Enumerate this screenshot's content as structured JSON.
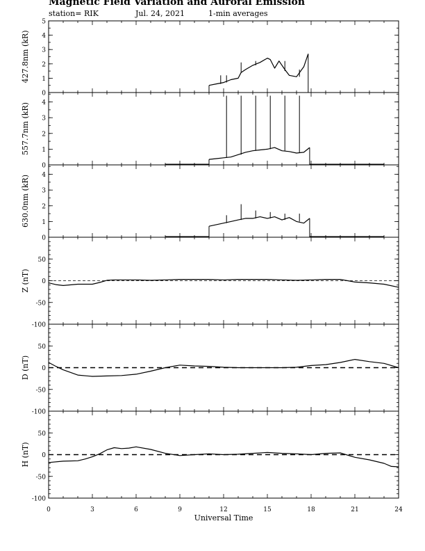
{
  "title": "Magnetic Field Variation and Auroral Emission",
  "subtitle": {
    "station": "station= RIK",
    "date": "Jul. 24, 2021",
    "averaging": "1-min averages"
  },
  "chart_data": [
    {
      "type": "line",
      "ylabel": "427.8nm (kR)",
      "ylim": [
        0,
        5
      ],
      "yticks": [
        0,
        1,
        2,
        3,
        4,
        5
      ],
      "dashed_zero": false,
      "x": [
        11.0,
        11.5,
        12.0,
        12.5,
        13.0,
        13.2,
        13.5,
        14.0,
        14.5,
        15.0,
        15.2,
        15.5,
        15.8,
        16.2,
        16.5,
        17.0,
        17.5,
        17.8
      ],
      "values": [
        0.5,
        0.6,
        0.7,
        0.9,
        1.0,
        1.4,
        1.6,
        1.9,
        2.1,
        2.4,
        2.3,
        1.7,
        2.2,
        1.6,
        1.2,
        1.1,
        1.8,
        2.7
      ],
      "spikes": [
        {
          "x": 11.8,
          "from": 0.6,
          "to": 1.2
        },
        {
          "x": 12.2,
          "from": 0.7,
          "to": 1.2
        },
        {
          "x": 13.2,
          "from": 1.4,
          "to": 2.1
        },
        {
          "x": 14.2,
          "from": 1.9,
          "to": 2.2
        },
        {
          "x": 15.2,
          "from": 2.3,
          "to": 2.3
        },
        {
          "x": 16.2,
          "from": 1.5,
          "to": 2.2
        },
        {
          "x": 17.2,
          "from": 1.1,
          "to": 1.6
        }
      ],
      "baseline_segments": []
    },
    {
      "type": "line",
      "ylabel": "557.7nm (kR)",
      "ylim": [
        0,
        4.6
      ],
      "yticks": [
        0,
        1,
        2,
        3,
        4
      ],
      "dashed_zero": false,
      "x": [
        11.0,
        11.5,
        12.0,
        12.5,
        13.0,
        13.5,
        14.0,
        14.5,
        15.0,
        15.5,
        16.0,
        16.5,
        17.0,
        17.5,
        17.9
      ],
      "values": [
        0.35,
        0.4,
        0.45,
        0.5,
        0.65,
        0.8,
        0.9,
        0.95,
        1.0,
        1.1,
        0.9,
        0.85,
        0.75,
        0.8,
        1.1
      ],
      "spikes": [
        {
          "x": 12.2,
          "from": 0.45,
          "to": 4.4
        },
        {
          "x": 13.2,
          "from": 0.65,
          "to": 4.4
        },
        {
          "x": 14.2,
          "from": 0.9,
          "to": 4.4
        },
        {
          "x": 15.2,
          "from": 1.0,
          "to": 4.4
        },
        {
          "x": 16.2,
          "from": 0.9,
          "to": 4.4
        },
        {
          "x": 17.2,
          "from": 0.75,
          "to": 4.4
        }
      ],
      "baseline_segments": [
        [
          8.0,
          11.0
        ],
        [
          17.9,
          23.0
        ]
      ]
    },
    {
      "type": "line",
      "ylabel": "630.0nm (kR)",
      "ylim": [
        0,
        4.6
      ],
      "yticks": [
        0,
        1,
        2,
        3,
        4
      ],
      "dashed_zero": false,
      "x": [
        11.0,
        11.5,
        12.0,
        12.5,
        13.0,
        13.5,
        14.0,
        14.5,
        15.0,
        15.5,
        16.0,
        16.5,
        17.0,
        17.5,
        17.9
      ],
      "values": [
        0.7,
        0.8,
        0.9,
        1.0,
        1.1,
        1.2,
        1.2,
        1.3,
        1.2,
        1.3,
        1.1,
        1.25,
        1.0,
        0.9,
        1.2
      ],
      "spikes": [
        {
          "x": 12.2,
          "from": 0.9,
          "to": 1.4
        },
        {
          "x": 13.2,
          "from": 1.1,
          "to": 2.1
        },
        {
          "x": 14.2,
          "from": 1.2,
          "to": 1.7
        },
        {
          "x": 15.2,
          "from": 1.2,
          "to": 1.6
        },
        {
          "x": 16.2,
          "from": 1.1,
          "to": 1.5
        },
        {
          "x": 17.2,
          "from": 1.0,
          "to": 1.5
        }
      ],
      "baseline_segments": [
        [
          8.0,
          11.0
        ],
        [
          17.9,
          23.0
        ]
      ]
    },
    {
      "type": "line",
      "ylabel": "Z (nT)",
      "ylim": [
        -100,
        100
      ],
      "yticks": [
        -100,
        -50,
        0,
        50
      ],
      "dashed_zero": true,
      "x": [
        0,
        0.5,
        1,
        2,
        3,
        3.5,
        4,
        4.5,
        5,
        6,
        7,
        8,
        9,
        10,
        11,
        12,
        13,
        14,
        15,
        16,
        17,
        18,
        19,
        20,
        21,
        22,
        23,
        24
      ],
      "values": [
        -5,
        -9,
        -11,
        -8,
        -8,
        -4,
        1,
        2,
        2,
        2,
        1,
        2,
        3,
        3,
        3,
        2,
        3,
        3,
        3,
        2,
        1,
        2,
        3,
        3,
        -3,
        -5,
        -8,
        -15
      ],
      "spikes": [],
      "baseline_segments": []
    },
    {
      "type": "line",
      "ylabel": "D (nT)",
      "ylim": [
        -100,
        100
      ],
      "yticks": [
        -100,
        -50,
        0,
        50
      ],
      "dashed_zero": true,
      "x": [
        0,
        0.5,
        1,
        2,
        3,
        4,
        5,
        6,
        7,
        8,
        9,
        10,
        11,
        12,
        13,
        14,
        15,
        16,
        17,
        18,
        19,
        20,
        21,
        22,
        23,
        24
      ],
      "values": [
        12,
        3,
        -5,
        -17,
        -20,
        -19,
        -18,
        -15,
        -8,
        0,
        6,
        4,
        3,
        1,
        0,
        0,
        0,
        0,
        1,
        5,
        7,
        12,
        19,
        14,
        10,
        0
      ],
      "spikes": [],
      "baseline_segments": []
    },
    {
      "type": "line",
      "ylabel": "H (nT)",
      "ylim": [
        -100,
        100
      ],
      "yticks": [
        -100,
        -50,
        0,
        50
      ],
      "dashed_zero": true,
      "x": [
        0,
        1,
        2,
        2.5,
        3,
        3.5,
        4,
        4.5,
        5,
        5.5,
        6,
        7,
        8,
        9,
        10,
        11,
        12,
        13,
        14,
        15,
        16,
        17,
        18,
        19,
        20,
        21,
        22,
        23,
        23.5,
        24
      ],
      "values": [
        -18,
        -15,
        -14,
        -10,
        -5,
        2,
        11,
        16,
        14,
        15,
        18,
        12,
        3,
        -2,
        0,
        2,
        0,
        1,
        3,
        5,
        3,
        2,
        0,
        3,
        4,
        -6,
        -12,
        -20,
        -27,
        -28
      ],
      "spikes": [],
      "baseline_segments": []
    }
  ],
  "x_axis": {
    "label": "Universal Time",
    "xlim": [
      0,
      24
    ],
    "ticks": [
      0,
      3,
      6,
      9,
      12,
      15,
      18,
      21,
      24
    ]
  }
}
